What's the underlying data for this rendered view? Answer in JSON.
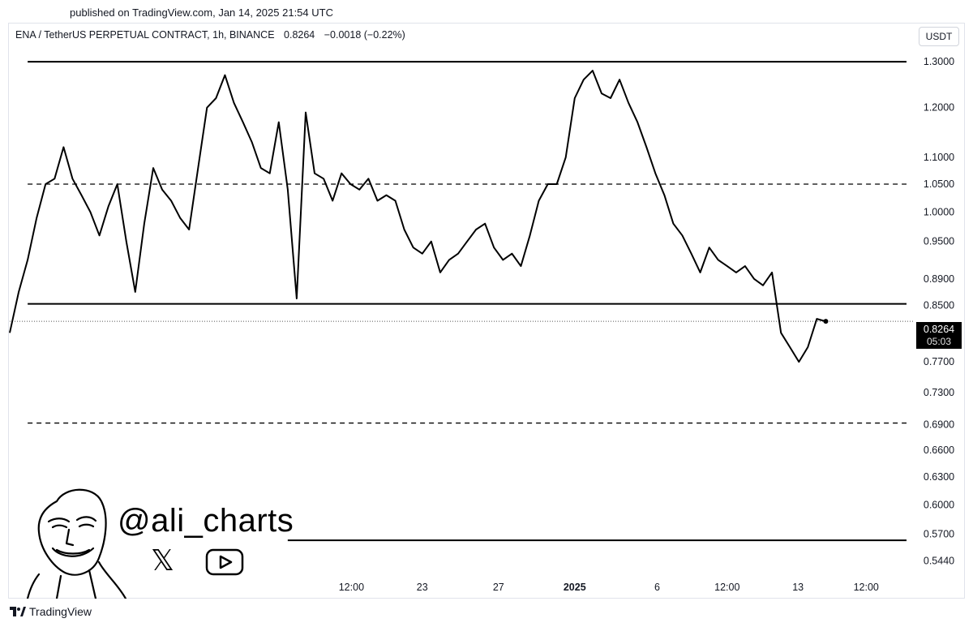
{
  "header": {
    "published": "published on TradingView.com, Jan 14, 2025 21:54 UTC",
    "symbol": "ENA / TetherUS PERPETUAL CONTRACT, 1h, BINANCE",
    "last_price": "0.8264",
    "change": "−0.0018 (−0.22%)",
    "currency_button": "USDT"
  },
  "price_tag": {
    "price": "0.8264",
    "countdown": "05:03"
  },
  "branding": {
    "handle": "@ali_charts",
    "x_icon": "x-icon",
    "youtube_icon": "youtube-icon"
  },
  "footer": {
    "brand": "TradingView"
  },
  "colors": {
    "line": "#000000",
    "background": "#ffffff",
    "price_tag_bg": "#000000"
  },
  "chart_data": {
    "type": "line",
    "title": "",
    "scale": "log",
    "ylim": [
      0.53,
      1.33
    ],
    "y_ticks": [
      "1.3000",
      "1.2000",
      "1.1000",
      "1.0500",
      "1.0000",
      "0.9500",
      "0.8900",
      "0.8500",
      "0.7700",
      "0.7300",
      "0.6900",
      "0.6600",
      "0.6300",
      "0.6000",
      "0.5700",
      "0.5440"
    ],
    "x_ticks": [
      "12:00",
      "23",
      "27",
      "2025",
      "6",
      "12:00",
      "13",
      "12:00"
    ],
    "x_ticks_bold": [
      "2025"
    ],
    "x_range": [
      0,
      100
    ],
    "x_tick_positions": [
      38.1,
      46.0,
      54.5,
      63.0,
      72.2,
      80.0,
      87.9,
      95.5
    ],
    "horizontal_levels": [
      {
        "price": 1.3,
        "style": "solid",
        "x_start": 2,
        "x_end": 100
      },
      {
        "price": 1.05,
        "style": "dashed",
        "x_start": 2,
        "x_end": 100
      },
      {
        "price": 0.852,
        "style": "solid",
        "x_start": 2,
        "x_end": 100
      },
      {
        "price": 0.692,
        "style": "dashed",
        "x_start": 2,
        "x_end": 100
      },
      {
        "price": 0.564,
        "style": "solid",
        "x_start": 31,
        "x_end": 100
      }
    ],
    "series": [
      {
        "x": [
          0,
          1,
          2,
          3,
          4,
          5,
          6,
          7,
          8,
          9,
          10,
          11,
          12,
          13,
          14,
          15,
          16,
          17,
          18,
          19,
          20,
          21,
          22,
          23,
          24,
          25,
          26,
          27,
          28,
          29,
          30,
          31,
          32,
          33,
          34,
          35,
          36,
          37,
          38,
          39,
          40,
          41,
          42,
          43,
          44,
          45,
          46,
          47,
          48,
          49,
          50,
          51,
          52,
          53,
          54,
          55,
          56,
          57,
          58,
          59,
          60,
          61,
          62,
          63,
          64,
          65,
          66,
          67,
          68,
          69,
          70,
          71,
          72,
          73,
          74,
          75,
          76,
          77,
          78,
          79,
          80,
          81,
          82,
          83,
          84,
          85,
          86,
          87,
          88,
          89,
          90,
          91
        ],
        "values": [
          0.81,
          0.87,
          0.92,
          0.99,
          1.05,
          1.06,
          1.12,
          1.06,
          1.03,
          1.0,
          0.96,
          1.01,
          1.05,
          0.95,
          0.87,
          0.98,
          1.08,
          1.04,
          1.02,
          0.99,
          0.97,
          1.08,
          1.2,
          1.22,
          1.27,
          1.21,
          1.17,
          1.13,
          1.08,
          1.07,
          1.17,
          1.04,
          0.86,
          1.19,
          1.07,
          1.06,
          1.02,
          1.07,
          1.05,
          1.04,
          1.06,
          1.02,
          1.03,
          1.02,
          0.97,
          0.94,
          0.93,
          0.95,
          0.9,
          0.92,
          0.93,
          0.95,
          0.97,
          0.98,
          0.94,
          0.92,
          0.93,
          0.91,
          0.96,
          1.02,
          1.05,
          1.05,
          1.1,
          1.22,
          1.26,
          1.28,
          1.23,
          1.22,
          1.26,
          1.21,
          1.17,
          1.12,
          1.07,
          1.03,
          0.98,
          0.96,
          0.93,
          0.9,
          0.94,
          0.92,
          0.91,
          0.9,
          0.91,
          0.89,
          0.88,
          0.9,
          0.81,
          0.79,
          0.77,
          0.79,
          0.83,
          0.8264
        ]
      }
    ]
  }
}
